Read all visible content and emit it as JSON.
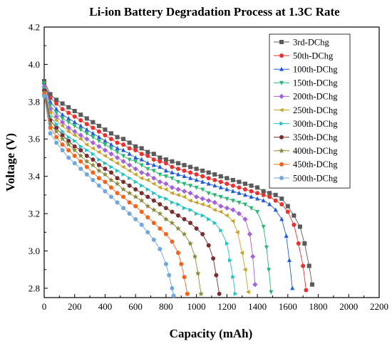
{
  "chart_data": {
    "type": "line",
    "title": "Li-ion Battery  Degradation Process at 1.3C Rate",
    "xlabel": "Capacity (mAh)",
    "ylabel": "Voltage (V)",
    "xlim": [
      0,
      2200
    ],
    "ylim": [
      2.75,
      4.2
    ],
    "xticks": [
      0,
      200,
      400,
      600,
      800,
      1000,
      1200,
      1400,
      1600,
      1800,
      2000,
      2200
    ],
    "yticks": [
      2.8,
      3.0,
      3.2,
      3.4,
      3.6,
      3.8,
      4.0,
      4.2
    ],
    "grid": false,
    "legend_position": "top-right",
    "series": [
      {
        "name": "3rd-DChg",
        "color": "#5a5a5a",
        "marker": "square",
        "x": [
          0,
          40,
          80,
          120,
          160,
          200,
          240,
          280,
          320,
          360,
          400,
          440,
          480,
          520,
          560,
          600,
          640,
          680,
          720,
          760,
          800,
          840,
          880,
          920,
          960,
          1000,
          1040,
          1080,
          1120,
          1160,
          1200,
          1240,
          1280,
          1320,
          1360,
          1400,
          1440,
          1480,
          1520,
          1560,
          1600,
          1640,
          1680,
          1710,
          1740,
          1760
        ],
        "y": [
          3.91,
          3.84,
          3.81,
          3.79,
          3.77,
          3.75,
          3.73,
          3.71,
          3.69,
          3.67,
          3.65,
          3.63,
          3.61,
          3.6,
          3.58,
          3.56,
          3.55,
          3.53,
          3.52,
          3.5,
          3.49,
          3.48,
          3.47,
          3.46,
          3.45,
          3.44,
          3.43,
          3.42,
          3.41,
          3.4,
          3.39,
          3.38,
          3.37,
          3.36,
          3.35,
          3.34,
          3.32,
          3.31,
          3.3,
          3.28,
          3.24,
          3.19,
          3.13,
          3.04,
          2.92,
          2.82
        ]
      },
      {
        "name": "50th-DChg",
        "color": "#e8322f",
        "marker": "circle",
        "x": [
          0,
          40,
          80,
          120,
          160,
          200,
          240,
          280,
          320,
          360,
          400,
          440,
          480,
          520,
          560,
          600,
          640,
          680,
          720,
          760,
          800,
          840,
          880,
          920,
          960,
          1000,
          1040,
          1080,
          1120,
          1160,
          1200,
          1240,
          1280,
          1320,
          1360,
          1400,
          1440,
          1480,
          1520,
          1560,
          1600,
          1640,
          1670,
          1700,
          1720
        ],
        "y": [
          3.9,
          3.82,
          3.79,
          3.76,
          3.74,
          3.72,
          3.7,
          3.68,
          3.66,
          3.64,
          3.62,
          3.6,
          3.58,
          3.57,
          3.55,
          3.54,
          3.52,
          3.51,
          3.49,
          3.48,
          3.47,
          3.45,
          3.44,
          3.43,
          3.42,
          3.41,
          3.4,
          3.39,
          3.38,
          3.37,
          3.36,
          3.35,
          3.34,
          3.33,
          3.32,
          3.31,
          3.3,
          3.29,
          3.27,
          3.25,
          3.21,
          3.14,
          3.04,
          2.92,
          2.79
        ]
      },
      {
        "name": "100th-DChg",
        "color": "#1f5cd6",
        "marker": "triangle-up",
        "x": [
          0,
          40,
          80,
          120,
          160,
          200,
          240,
          280,
          320,
          360,
          400,
          440,
          480,
          520,
          560,
          600,
          640,
          680,
          720,
          760,
          800,
          840,
          880,
          920,
          960,
          1000,
          1040,
          1080,
          1120,
          1160,
          1200,
          1240,
          1280,
          1320,
          1360,
          1400,
          1440,
          1480,
          1520,
          1560,
          1590,
          1610,
          1630
        ],
        "y": [
          3.9,
          3.8,
          3.76,
          3.73,
          3.71,
          3.69,
          3.67,
          3.65,
          3.63,
          3.61,
          3.59,
          3.57,
          3.55,
          3.54,
          3.52,
          3.5,
          3.49,
          3.47,
          3.46,
          3.45,
          3.43,
          3.42,
          3.41,
          3.4,
          3.39,
          3.38,
          3.37,
          3.36,
          3.35,
          3.34,
          3.33,
          3.32,
          3.31,
          3.3,
          3.29,
          3.28,
          3.27,
          3.25,
          3.22,
          3.17,
          3.08,
          2.95,
          2.8
        ]
      },
      {
        "name": "150th-DChg",
        "color": "#2bb673",
        "marker": "triangle-down",
        "x": [
          0,
          40,
          80,
          120,
          160,
          200,
          240,
          280,
          320,
          360,
          400,
          440,
          480,
          520,
          560,
          600,
          640,
          680,
          720,
          760,
          800,
          840,
          880,
          920,
          960,
          1000,
          1040,
          1080,
          1120,
          1160,
          1200,
          1240,
          1280,
          1320,
          1360,
          1400,
          1440,
          1460,
          1475,
          1490
        ],
        "y": [
          3.9,
          3.78,
          3.74,
          3.71,
          3.69,
          3.67,
          3.65,
          3.63,
          3.61,
          3.59,
          3.57,
          3.55,
          3.53,
          3.51,
          3.49,
          3.48,
          3.46,
          3.44,
          3.43,
          3.41,
          3.4,
          3.39,
          3.37,
          3.36,
          3.35,
          3.34,
          3.33,
          3.31,
          3.3,
          3.29,
          3.28,
          3.27,
          3.26,
          3.25,
          3.23,
          3.21,
          3.13,
          3.02,
          2.9,
          2.78
        ]
      },
      {
        "name": "200th-DChg",
        "color": "#a461d8",
        "marker": "diamond",
        "x": [
          0,
          40,
          80,
          120,
          160,
          200,
          240,
          280,
          320,
          360,
          400,
          440,
          480,
          520,
          560,
          600,
          640,
          680,
          720,
          760,
          800,
          840,
          880,
          920,
          960,
          1000,
          1040,
          1080,
          1120,
          1160,
          1200,
          1240,
          1280,
          1320,
          1350,
          1370,
          1385
        ],
        "y": [
          3.88,
          3.76,
          3.72,
          3.69,
          3.66,
          3.64,
          3.62,
          3.6,
          3.58,
          3.56,
          3.54,
          3.52,
          3.5,
          3.48,
          3.46,
          3.44,
          3.42,
          3.41,
          3.39,
          3.37,
          3.36,
          3.34,
          3.33,
          3.32,
          3.31,
          3.29,
          3.28,
          3.27,
          3.26,
          3.24,
          3.23,
          3.22,
          3.2,
          3.17,
          3.09,
          2.97,
          2.82
        ]
      },
      {
        "name": "250th-DChg",
        "color": "#c9a227",
        "marker": "triangle-left",
        "x": [
          0,
          40,
          80,
          120,
          160,
          200,
          240,
          280,
          320,
          360,
          400,
          440,
          480,
          520,
          560,
          600,
          640,
          680,
          720,
          760,
          800,
          840,
          880,
          920,
          960,
          1000,
          1040,
          1080,
          1120,
          1160,
          1200,
          1240,
          1270,
          1300,
          1320,
          1340
        ],
        "y": [
          3.87,
          3.74,
          3.7,
          3.67,
          3.64,
          3.62,
          3.6,
          3.57,
          3.55,
          3.53,
          3.51,
          3.49,
          3.47,
          3.45,
          3.43,
          3.41,
          3.39,
          3.38,
          3.36,
          3.34,
          3.33,
          3.31,
          3.3,
          3.29,
          3.27,
          3.26,
          3.25,
          3.24,
          3.22,
          3.21,
          3.19,
          3.16,
          3.1,
          2.99,
          2.9,
          2.78
        ]
      },
      {
        "name": "300th-DChg",
        "color": "#22c1c3",
        "marker": "triangle-right",
        "x": [
          0,
          40,
          80,
          120,
          160,
          200,
          240,
          280,
          320,
          360,
          400,
          440,
          480,
          520,
          560,
          600,
          640,
          680,
          720,
          760,
          800,
          840,
          880,
          920,
          960,
          1000,
          1040,
          1080,
          1120,
          1160,
          1200,
          1220,
          1240,
          1255
        ],
        "y": [
          3.87,
          3.72,
          3.68,
          3.64,
          3.61,
          3.59,
          3.56,
          3.54,
          3.52,
          3.49,
          3.47,
          3.45,
          3.43,
          3.41,
          3.39,
          3.37,
          3.35,
          3.33,
          3.31,
          3.29,
          3.28,
          3.26,
          3.25,
          3.23,
          3.22,
          3.2,
          3.19,
          3.17,
          3.15,
          3.11,
          3.04,
          2.95,
          2.86,
          2.77
        ]
      },
      {
        "name": "350th-DChg",
        "color": "#7a2e2e",
        "marker": "circle",
        "x": [
          0,
          40,
          80,
          120,
          160,
          200,
          240,
          280,
          320,
          360,
          400,
          440,
          480,
          520,
          560,
          600,
          640,
          680,
          720,
          760,
          800,
          840,
          880,
          920,
          960,
          1000,
          1040,
          1080,
          1110,
          1130,
          1150
        ],
        "y": [
          3.86,
          3.7,
          3.66,
          3.62,
          3.59,
          3.56,
          3.54,
          3.51,
          3.49,
          3.46,
          3.44,
          3.42,
          3.39,
          3.37,
          3.35,
          3.33,
          3.31,
          3.29,
          3.27,
          3.25,
          3.23,
          3.21,
          3.19,
          3.17,
          3.15,
          3.12,
          3.09,
          3.03,
          2.96,
          2.87,
          2.77
        ]
      },
      {
        "name": "400th-DChg",
        "color": "#8a8a3a",
        "marker": "star",
        "x": [
          0,
          40,
          80,
          120,
          160,
          200,
          240,
          280,
          320,
          360,
          400,
          440,
          480,
          520,
          560,
          600,
          640,
          680,
          720,
          760,
          800,
          840,
          880,
          920,
          960,
          990,
          1010,
          1030
        ],
        "y": [
          3.85,
          3.68,
          3.64,
          3.6,
          3.57,
          3.54,
          3.51,
          3.48,
          3.46,
          3.43,
          3.41,
          3.38,
          3.36,
          3.33,
          3.31,
          3.29,
          3.27,
          3.24,
          3.22,
          3.2,
          3.17,
          3.15,
          3.12,
          3.09,
          3.04,
          2.97,
          2.88,
          2.77
        ]
      },
      {
        "name": "450th-DChg",
        "color": "#f2641e",
        "marker": "circle",
        "x": [
          0,
          40,
          80,
          120,
          160,
          200,
          240,
          280,
          320,
          360,
          400,
          440,
          480,
          520,
          560,
          600,
          640,
          680,
          720,
          760,
          800,
          840,
          880,
          900,
          920,
          940
        ],
        "y": [
          3.84,
          3.66,
          3.61,
          3.57,
          3.54,
          3.51,
          3.48,
          3.45,
          3.42,
          3.39,
          3.37,
          3.34,
          3.31,
          3.29,
          3.26,
          3.24,
          3.21,
          3.18,
          3.15,
          3.12,
          3.09,
          3.05,
          2.99,
          2.93,
          2.86,
          2.77
        ]
      },
      {
        "name": "500th-DChg",
        "color": "#6fa8dc",
        "marker": "circle",
        "x": [
          0,
          40,
          80,
          120,
          160,
          200,
          240,
          280,
          320,
          360,
          400,
          440,
          480,
          520,
          560,
          600,
          640,
          680,
          720,
          760,
          800,
          820,
          840,
          850
        ],
        "y": [
          3.83,
          3.63,
          3.58,
          3.54,
          3.5,
          3.47,
          3.44,
          3.41,
          3.38,
          3.35,
          3.32,
          3.29,
          3.26,
          3.23,
          3.2,
          3.17,
          3.14,
          3.1,
          3.06,
          3.01,
          2.93,
          2.87,
          2.8,
          2.76
        ]
      }
    ]
  }
}
